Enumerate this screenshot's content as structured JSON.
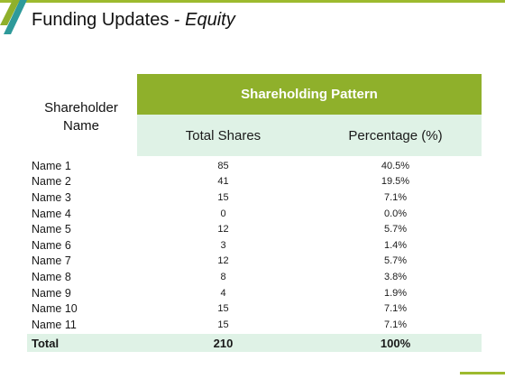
{
  "slide": {
    "title_main": "Funding Updates - ",
    "title_emph": "Equity"
  },
  "table": {
    "shareholder_header": "Shareholder Name",
    "group_header": "Shareholding Pattern",
    "col_shares": "Total Shares",
    "col_pct": "Percentage (%)",
    "rows": [
      {
        "name": "Name 1",
        "shares": "85",
        "pct": "40.5%"
      },
      {
        "name": "Name 2",
        "shares": "41",
        "pct": "19.5%"
      },
      {
        "name": "Name 3",
        "shares": "15",
        "pct": "7.1%"
      },
      {
        "name": "Name 4",
        "shares": "0",
        "pct": "0.0%"
      },
      {
        "name": "Name 5",
        "shares": "12",
        "pct": "5.7%"
      },
      {
        "name": "Name 6",
        "shares": "3",
        "pct": "1.4%"
      },
      {
        "name": "Name 7",
        "shares": "12",
        "pct": "5.7%"
      },
      {
        "name": "Name 8",
        "shares": "8",
        "pct": "3.8%"
      },
      {
        "name": "Name 9",
        "shares": "4",
        "pct": "1.9%"
      },
      {
        "name": "Name 10",
        "shares": "15",
        "pct": "7.1%"
      },
      {
        "name": "Name 11",
        "shares": "15",
        "pct": "7.1%"
      }
    ],
    "total": {
      "name": "Total",
      "shares": "210",
      "pct": "100%"
    }
  },
  "colors": {
    "accent_green": "#8fb02b",
    "light_mint": "#dff2e6",
    "teal_stripe": "#2e9a9a"
  }
}
